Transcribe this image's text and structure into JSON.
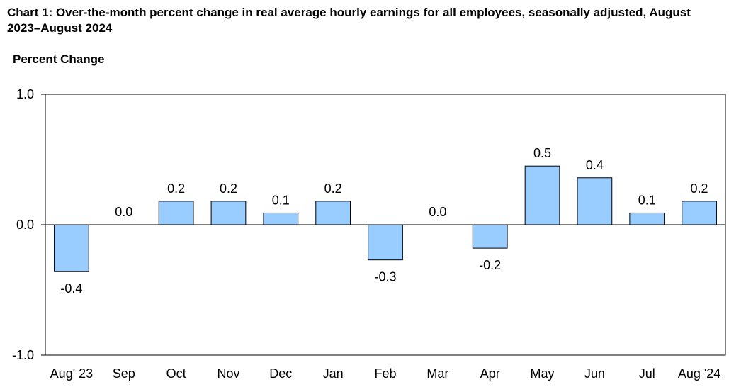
{
  "chart_data": {
    "type": "bar",
    "title": "Chart 1: Over-the-month percent change in real average hourly earnings for all employees, seasonally adjusted, August 2023–August 2024",
    "ylabel": "Percent Change",
    "xlabel": "",
    "categories": [
      "Aug' 23",
      "Sep",
      "Oct",
      "Nov",
      "Dec",
      "Jan",
      "Feb",
      "Mar",
      "Apr",
      "May",
      "Jun",
      "Jul",
      "Aug '24"
    ],
    "values": [
      -0.36,
      0.0,
      0.18,
      0.18,
      0.09,
      0.18,
      -0.27,
      0.0,
      -0.18,
      0.45,
      0.36,
      0.09,
      0.18
    ],
    "data_labels": [
      "-0.4",
      "0.0",
      "0.2",
      "0.2",
      "0.1",
      "0.2",
      "-0.3",
      "0.0",
      "-0.2",
      "0.5",
      "0.4",
      "0.1",
      "0.2"
    ],
    "ylim": [
      -1.0,
      1.0
    ],
    "yticks": [
      -1.0,
      0.0,
      1.0
    ],
    "ytick_labels": [
      "-1.0",
      "0.0",
      "1.0"
    ],
    "bar_color": "#99ccff",
    "bar_edge_color": "#000000",
    "grid": false,
    "legend": "none"
  }
}
